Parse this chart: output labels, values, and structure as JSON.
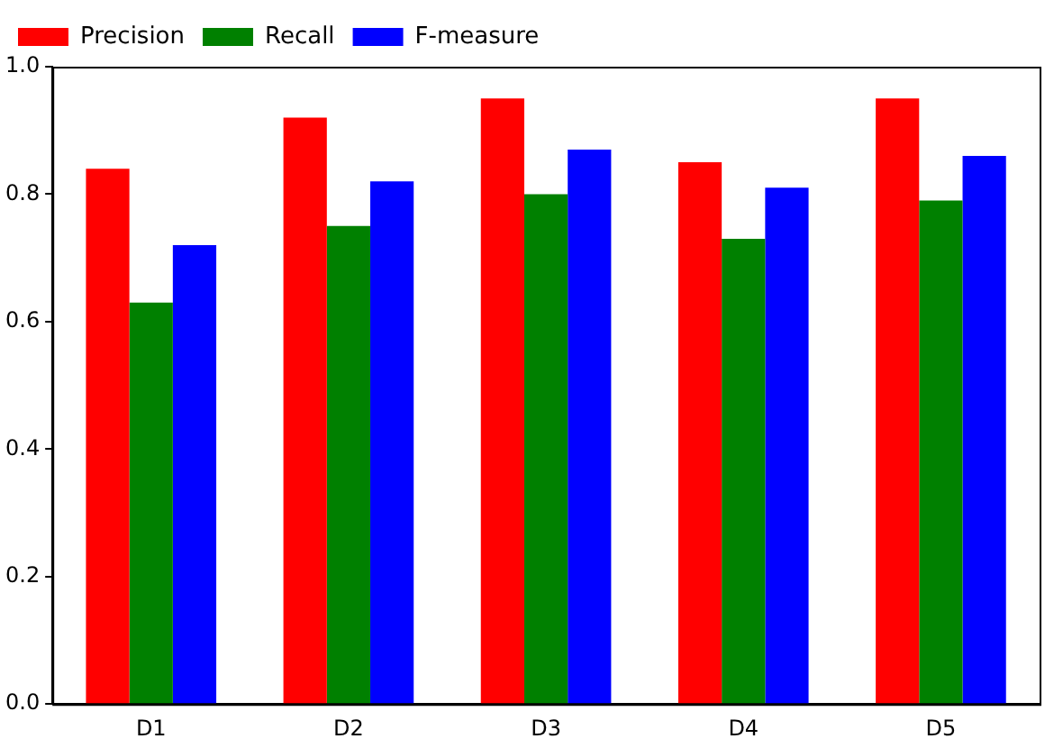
{
  "chart_data": {
    "type": "bar",
    "categories": [
      "D1",
      "D2",
      "D3",
      "D4",
      "D5"
    ],
    "series": [
      {
        "name": "Precision",
        "color": "#ff0000",
        "values": [
          0.84,
          0.92,
          0.95,
          0.85,
          0.95
        ]
      },
      {
        "name": "Recall",
        "color": "#008000",
        "values": [
          0.63,
          0.75,
          0.8,
          0.73,
          0.79
        ]
      },
      {
        "name": "F-measure",
        "color": "#0000ff",
        "values": [
          0.72,
          0.82,
          0.87,
          0.81,
          0.86
        ]
      }
    ],
    "ylim": [
      0,
      1
    ],
    "yticks": [
      {
        "value": 0,
        "label": "0.0"
      },
      {
        "value": 0.2,
        "label": "0.2"
      },
      {
        "value": 0.4,
        "label": "0.4"
      },
      {
        "value": 0.6,
        "label": "0.6"
      },
      {
        "value": 0.8,
        "label": "0.8"
      },
      {
        "value": 1,
        "label": "1.0"
      }
    ],
    "grid": false,
    "legend": "top left"
  }
}
